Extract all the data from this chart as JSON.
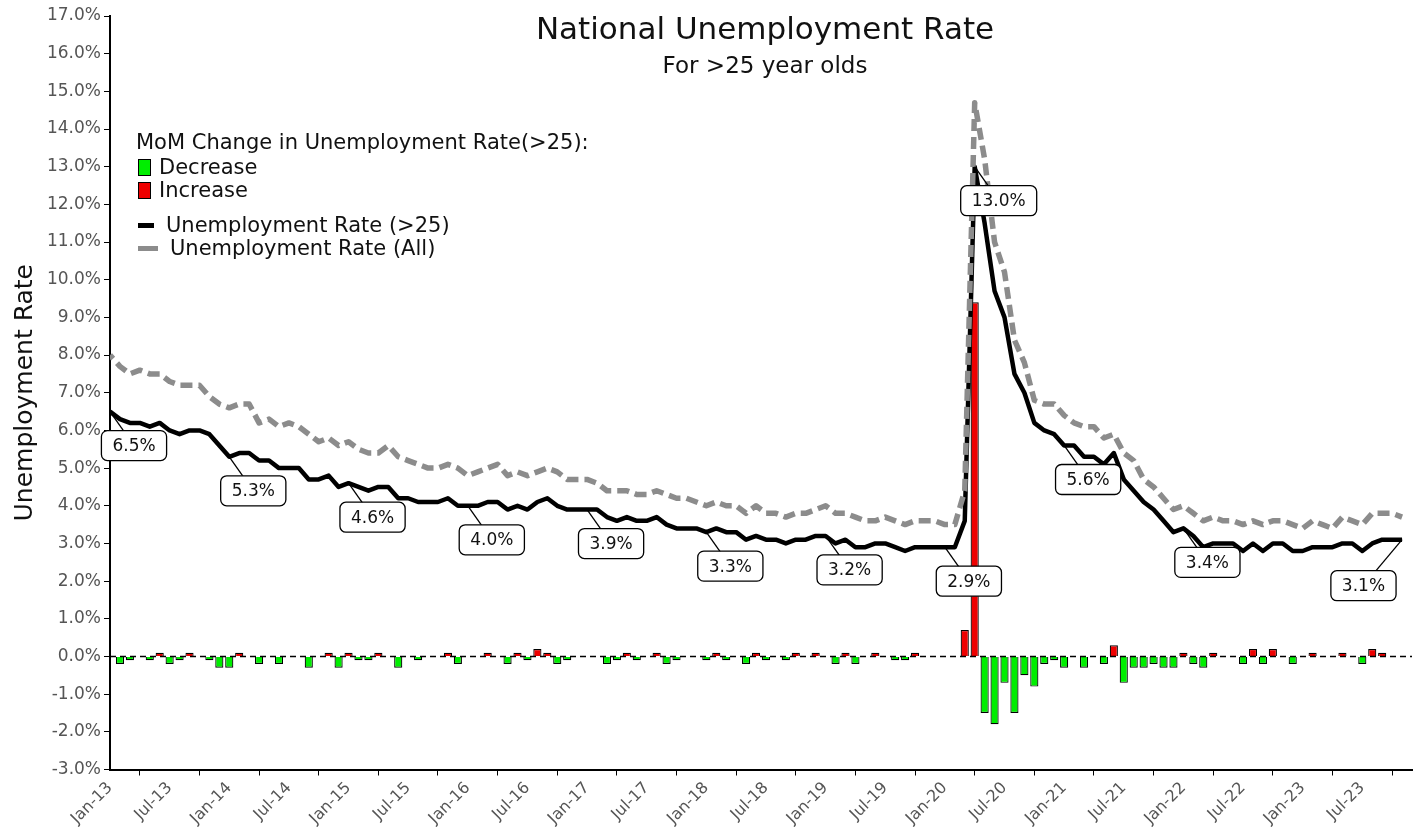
{
  "chart_data": {
    "type": "line",
    "title": "National Unemployment Rate",
    "subtitle": "For >25 year olds",
    "ylabel": "Unemployment Rate",
    "legend_title": "MoM Change in Unemployment Rate(>25):",
    "legend": "top left",
    "x": [
      "2013-01",
      "2013-02",
      "2013-03",
      "2013-04",
      "2013-05",
      "2013-06",
      "2013-07",
      "2013-08",
      "2013-09",
      "2013-10",
      "2013-11",
      "2013-12",
      "2014-01",
      "2014-02",
      "2014-03",
      "2014-04",
      "2014-05",
      "2014-06",
      "2014-07",
      "2014-08",
      "2014-09",
      "2014-10",
      "2014-11",
      "2014-12",
      "2015-01",
      "2015-02",
      "2015-03",
      "2015-04",
      "2015-05",
      "2015-06",
      "2015-07",
      "2015-08",
      "2015-09",
      "2015-10",
      "2015-11",
      "2015-12",
      "2016-01",
      "2016-02",
      "2016-03",
      "2016-04",
      "2016-05",
      "2016-06",
      "2016-07",
      "2016-08",
      "2016-09",
      "2016-10",
      "2016-11",
      "2016-12",
      "2017-01",
      "2017-02",
      "2017-03",
      "2017-04",
      "2017-05",
      "2017-06",
      "2017-07",
      "2017-08",
      "2017-09",
      "2017-10",
      "2017-11",
      "2017-12",
      "2018-01",
      "2018-02",
      "2018-03",
      "2018-04",
      "2018-05",
      "2018-06",
      "2018-07",
      "2018-08",
      "2018-09",
      "2018-10",
      "2018-11",
      "2018-12",
      "2019-01",
      "2019-02",
      "2019-03",
      "2019-04",
      "2019-05",
      "2019-06",
      "2019-07",
      "2019-08",
      "2019-09",
      "2019-10",
      "2019-11",
      "2019-12",
      "2020-01",
      "2020-02",
      "2020-03",
      "2020-04",
      "2020-05",
      "2020-06",
      "2020-07",
      "2020-08",
      "2020-09",
      "2020-10",
      "2020-11",
      "2020-12",
      "2021-01",
      "2021-02",
      "2021-03",
      "2021-04",
      "2021-05",
      "2021-06",
      "2021-07",
      "2021-08",
      "2021-09",
      "2021-10",
      "2021-11",
      "2021-12",
      "2022-01",
      "2022-02",
      "2022-03",
      "2022-04",
      "2022-05",
      "2022-06",
      "2022-07",
      "2022-08",
      "2022-09",
      "2022-10",
      "2022-11",
      "2022-12",
      "2023-01",
      "2023-02",
      "2023-03",
      "2023-04",
      "2023-05",
      "2023-06",
      "2023-07",
      "2023-08",
      "2023-09",
      "2023-10",
      "2023-11"
    ],
    "series": [
      {
        "name": "Decrease",
        "type": "bar",
        "color": "#00ee00",
        "values": [
          null,
          -0.2,
          -0.1,
          null,
          -0.1,
          null,
          -0.2,
          -0.1,
          null,
          null,
          -0.1,
          -0.3,
          -0.3,
          null,
          null,
          -0.2,
          null,
          -0.2,
          null,
          null,
          -0.3,
          null,
          null,
          -0.3,
          null,
          -0.1,
          -0.1,
          null,
          null,
          -0.3,
          null,
          -0.1,
          null,
          null,
          null,
          -0.2,
          null,
          null,
          null,
          null,
          -0.2,
          null,
          -0.1,
          null,
          null,
          -0.2,
          -0.1,
          null,
          null,
          null,
          -0.2,
          -0.1,
          null,
          -0.1,
          null,
          null,
          -0.2,
          -0.1,
          null,
          null,
          -0.1,
          null,
          -0.1,
          null,
          -0.2,
          null,
          -0.1,
          null,
          -0.1,
          null,
          null,
          null,
          null,
          -0.2,
          null,
          -0.2,
          null,
          null,
          null,
          -0.1,
          -0.1,
          null,
          null,
          null,
          null,
          null,
          null,
          null,
          -1.5,
          -1.8,
          -0.7,
          -1.5,
          -0.5,
          -0.8,
          -0.2,
          -0.1,
          -0.3,
          null,
          -0.3,
          null,
          -0.2,
          null,
          -0.7,
          -0.3,
          -0.3,
          -0.2,
          -0.3,
          -0.3,
          null,
          -0.2,
          -0.3,
          null,
          null,
          null,
          -0.2,
          null,
          -0.2,
          null,
          null,
          -0.2,
          null,
          null,
          null,
          null,
          null,
          null,
          -0.2,
          null,
          null,
          null,
          null
        ]
      },
      {
        "name": "Increase",
        "type": "bar",
        "color": "#ee0000",
        "values": [
          null,
          null,
          null,
          null,
          null,
          0.1,
          null,
          null,
          0.1,
          null,
          null,
          null,
          null,
          0.1,
          null,
          null,
          null,
          null,
          null,
          null,
          null,
          null,
          0.1,
          null,
          0.1,
          null,
          null,
          0.1,
          null,
          null,
          null,
          null,
          null,
          null,
          0.1,
          null,
          null,
          null,
          0.1,
          null,
          null,
          0.1,
          null,
          0.2,
          0.1,
          null,
          null,
          null,
          null,
          null,
          null,
          null,
          0.1,
          null,
          null,
          0.1,
          null,
          null,
          null,
          null,
          null,
          0.1,
          null,
          null,
          null,
          0.1,
          null,
          null,
          null,
          0.1,
          null,
          0.1,
          null,
          null,
          0.1,
          null,
          null,
          0.1,
          null,
          null,
          null,
          0.1,
          null,
          null,
          null,
          null,
          0.7,
          9.4,
          null,
          null,
          null,
          null,
          null,
          null,
          null,
          null,
          null,
          null,
          null,
          null,
          null,
          0.3,
          null,
          null,
          null,
          null,
          null,
          null,
          0.1,
          null,
          null,
          0.1,
          null,
          null,
          null,
          0.2,
          null,
          0.2,
          null,
          null,
          null,
          0.1,
          null,
          null,
          0.1,
          null,
          null,
          0.2,
          0.1,
          null,
          null
        ]
      },
      {
        "name": "Unemployment Rate (>25)",
        "color": "#000000",
        "line_style": "solid",
        "values": [
          6.5,
          6.3,
          6.2,
          6.2,
          6.1,
          6.2,
          6.0,
          5.9,
          6.0,
          6.0,
          5.9,
          5.6,
          5.3,
          5.4,
          5.4,
          5.2,
          5.2,
          5.0,
          5.0,
          5.0,
          4.7,
          4.7,
          4.8,
          4.5,
          4.6,
          4.5,
          4.4,
          4.5,
          4.5,
          4.2,
          4.2,
          4.1,
          4.1,
          4.1,
          4.2,
          4.0,
          4.0,
          4.0,
          4.1,
          4.1,
          3.9,
          4.0,
          3.9,
          4.1,
          4.2,
          4.0,
          3.9,
          3.9,
          3.9,
          3.9,
          3.7,
          3.6,
          3.7,
          3.6,
          3.6,
          3.7,
          3.5,
          3.4,
          3.4,
          3.4,
          3.3,
          3.4,
          3.3,
          3.3,
          3.1,
          3.2,
          3.1,
          3.1,
          3.0,
          3.1,
          3.1,
          3.2,
          3.2,
          3.0,
          3.1,
          2.9,
          2.9,
          3.0,
          3.0,
          2.9,
          2.8,
          2.9,
          2.9,
          2.9,
          2.9,
          2.9,
          3.6,
          13.0,
          11.5,
          9.7,
          9.0,
          7.5,
          7.0,
          6.2,
          6.0,
          5.9,
          5.6,
          5.6,
          5.3,
          5.3,
          5.1,
          5.4,
          4.7,
          4.4,
          4.1,
          3.9,
          3.6,
          3.3,
          3.4,
          3.2,
          2.9,
          3.0,
          3.0,
          3.0,
          2.8,
          3.0,
          2.8,
          3.0,
          3.0,
          2.8,
          2.8,
          2.9,
          2.9,
          2.9,
          3.0,
          3.0,
          2.8,
          3.0,
          3.1,
          3.1,
          3.1
        ]
      },
      {
        "name": "Unemployment Rate (All)",
        "color": "#8c8c8c",
        "line_style": "dashed",
        "values": [
          8.0,
          7.7,
          7.5,
          7.6,
          7.5,
          7.5,
          7.3,
          7.2,
          7.2,
          7.2,
          6.9,
          6.7,
          6.6,
          6.7,
          6.7,
          6.2,
          6.3,
          6.1,
          6.2,
          6.1,
          5.9,
          5.7,
          5.8,
          5.6,
          5.7,
          5.5,
          5.4,
          5.4,
          5.6,
          5.3,
          5.2,
          5.1,
          5.0,
          5.0,
          5.1,
          5.0,
          4.8,
          4.9,
          5.0,
          5.1,
          4.8,
          4.9,
          4.8,
          4.9,
          5.0,
          4.9,
          4.7,
          4.7,
          4.7,
          4.6,
          4.4,
          4.4,
          4.4,
          4.3,
          4.3,
          4.4,
          4.3,
          4.2,
          4.2,
          4.1,
          4.0,
          4.1,
          4.0,
          4.0,
          3.8,
          4.0,
          3.8,
          3.8,
          3.7,
          3.8,
          3.8,
          3.9,
          4.0,
          3.8,
          3.8,
          3.7,
          3.6,
          3.6,
          3.7,
          3.6,
          3.5,
          3.6,
          3.6,
          3.6,
          3.5,
          3.5,
          4.4,
          14.7,
          13.2,
          11.0,
          10.2,
          8.4,
          7.8,
          6.8,
          6.7,
          6.7,
          6.4,
          6.2,
          6.1,
          6.1,
          5.8,
          5.9,
          5.4,
          5.2,
          4.7,
          4.5,
          4.2,
          3.9,
          4.0,
          3.8,
          3.6,
          3.7,
          3.6,
          3.6,
          3.5,
          3.6,
          3.5,
          3.6,
          3.6,
          3.5,
          3.4,
          3.6,
          3.5,
          3.4,
          3.7,
          3.6,
          3.5,
          3.8,
          3.8,
          3.8,
          3.7
        ]
      }
    ],
    "xlim": [
      "2013-01",
      "2023-12"
    ],
    "xticks": [
      {
        "value": "2013-01",
        "label": "Jan-13"
      },
      {
        "value": "2013-07",
        "label": "Jul-13"
      },
      {
        "value": "2014-01",
        "label": "Jan-14"
      },
      {
        "value": "2014-07",
        "label": "Jul-14"
      },
      {
        "value": "2015-01",
        "label": "Jan-15"
      },
      {
        "value": "2015-07",
        "label": "Jul-15"
      },
      {
        "value": "2016-01",
        "label": "Jan-16"
      },
      {
        "value": "2016-07",
        "label": "Jul-16"
      },
      {
        "value": "2017-01",
        "label": "Jan-17"
      },
      {
        "value": "2017-07",
        "label": "Jul-17"
      },
      {
        "value": "2018-01",
        "label": "Jan-18"
      },
      {
        "value": "2018-07",
        "label": "Jul-18"
      },
      {
        "value": "2019-01",
        "label": "Jan-19"
      },
      {
        "value": "2019-07",
        "label": "Jul-19"
      },
      {
        "value": "2020-01",
        "label": "Jan-20"
      },
      {
        "value": "2020-07",
        "label": "Jul-20"
      },
      {
        "value": "2021-01",
        "label": "Jan-21"
      },
      {
        "value": "2021-07",
        "label": "Jul-21"
      },
      {
        "value": "2022-01",
        "label": "Jan-22"
      },
      {
        "value": "2022-07",
        "label": "Jul-22"
      },
      {
        "value": "2023-01",
        "label": "Jan-23"
      },
      {
        "value": "2023-07",
        "label": "Jul-23"
      }
    ],
    "ylim": [
      -3,
      17
    ],
    "yticks": [
      {
        "value": -3,
        "label": "-3.0%"
      },
      {
        "value": -2,
        "label": "-2.0%"
      },
      {
        "value": -1,
        "label": "-1.0%"
      },
      {
        "value": 0,
        "label": "0.0%"
      },
      {
        "value": 1,
        "label": "1.0%"
      },
      {
        "value": 2,
        "label": "2.0%"
      },
      {
        "value": 3,
        "label": "3.0%"
      },
      {
        "value": 4,
        "label": "4.0%"
      },
      {
        "value": 5,
        "label": "5.0%"
      },
      {
        "value": 6,
        "label": "6.0%"
      },
      {
        "value": 7,
        "label": "7.0%"
      },
      {
        "value": 8,
        "label": "8.0%"
      },
      {
        "value": 9,
        "label": "9.0%"
      },
      {
        "value": 10,
        "label": "10.0%"
      },
      {
        "value": 11,
        "label": "11.0%"
      },
      {
        "value": 12,
        "label": "12.0%"
      },
      {
        "value": 13,
        "label": "13.0%"
      },
      {
        "value": 14,
        "label": "14.0%"
      },
      {
        "value": 15,
        "label": "15.0%"
      },
      {
        "value": 16,
        "label": "16.0%"
      },
      {
        "value": 17,
        "label": "17.0%"
      }
    ],
    "ref_lines": [
      {
        "axis": "y",
        "value": 0,
        "color": "#000000",
        "line_style": "dashed"
      }
    ],
    "annotations": [
      {
        "text": "6.5%",
        "x": "2013-01",
        "y": 6.5
      },
      {
        "text": "5.3%",
        "x": "2014-01",
        "y": 5.3
      },
      {
        "text": "4.6%",
        "x": "2015-01",
        "y": 4.6
      },
      {
        "text": "4.0%",
        "x": "2016-01",
        "y": 4.0
      },
      {
        "text": "3.9%",
        "x": "2017-01",
        "y": 3.9
      },
      {
        "text": "3.3%",
        "x": "2018-01",
        "y": 3.3
      },
      {
        "text": "3.2%",
        "x": "2019-01",
        "y": 3.2
      },
      {
        "text": "2.9%",
        "x": "2020-01",
        "y": 2.9
      },
      {
        "text": "13.0%",
        "x": "2020-04",
        "y": 13.0
      },
      {
        "text": "5.6%",
        "x": "2021-01",
        "y": 5.6
      },
      {
        "text": "3.4%",
        "x": "2022-01",
        "y": 3.4
      },
      {
        "text": "3.1%",
        "x": "2023-11",
        "y": 3.1
      }
    ],
    "grid": false
  }
}
